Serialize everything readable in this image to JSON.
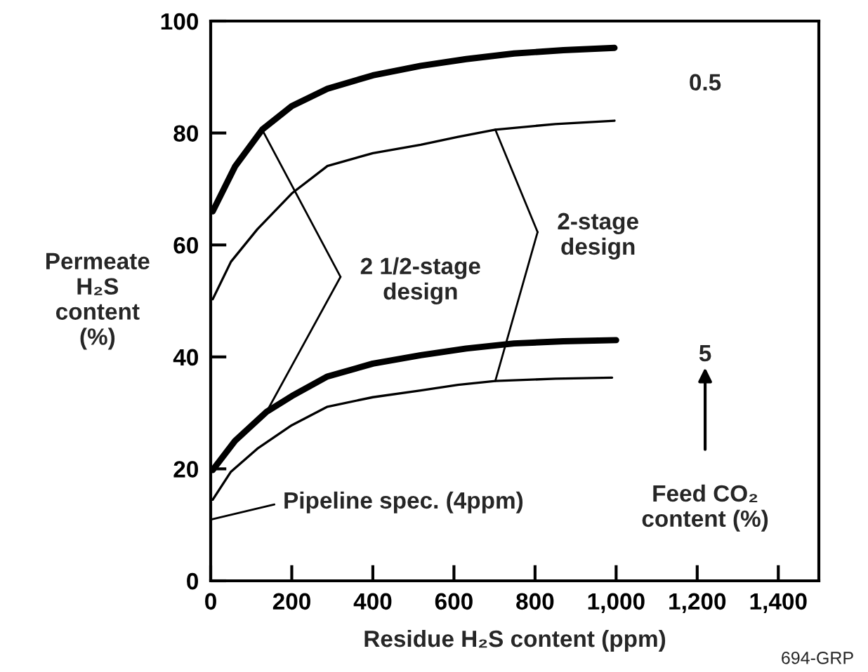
{
  "chart_data": {
    "type": "line",
    "xlabel": "Residue H₂S content (ppm)",
    "ylabel": "Permeate\nH₂S\ncontent\n(%)",
    "xlim": [
      0,
      1500
    ],
    "xticks": [
      0,
      200,
      400,
      600,
      800,
      {
        "value": 1000,
        "label": "1,000"
      },
      {
        "value": 1200,
        "label": "1,200"
      },
      {
        "value": 1400,
        "label": "1,400"
      }
    ],
    "ylim": [
      0,
      100
    ],
    "yticks": [
      0,
      20,
      40,
      60,
      80,
      100
    ],
    "grid": false,
    "legend": false,
    "marker": "none",
    "line_style": "solid",
    "series": [
      {
        "color": "#000000",
        "x": [
          5,
          60,
          127,
          200,
          288,
          400,
          518,
          630,
          748,
          870,
          996
        ],
        "values": [
          66,
          74,
          80.6,
          84.8,
          87.9,
          90.3,
          92,
          93.2,
          94.2,
          94.8,
          95.2
        ]
      },
      {
        "color": "#000000",
        "x": [
          5,
          50,
          115,
          200,
          288,
          400,
          518,
          610,
          702,
          850,
          996
        ],
        "values": [
          50.3,
          57,
          62.8,
          69.2,
          74.1,
          76.4,
          77.9,
          79.3,
          80.6,
          81.6,
          82.2
        ]
      },
      {
        "color": "#000000",
        "x": [
          5,
          60,
          138,
          200,
          288,
          400,
          518,
          630,
          748,
          870,
          1000
        ],
        "values": [
          19.8,
          25,
          30.2,
          33,
          36.5,
          38.8,
          40.3,
          41.5,
          42.4,
          42.8,
          43
        ]
      },
      {
        "color": "#000000",
        "x": [
          5,
          50,
          115,
          200,
          288,
          400,
          518,
          610,
          702,
          850,
          990
        ],
        "values": [
          14.5,
          19.5,
          23.6,
          27.8,
          31.1,
          32.8,
          34,
          35,
          35.7,
          36.1,
          36.3
        ]
      }
    ],
    "annotations": [
      "Pipeline spec. (4ppm)",
      {
        "text": "2 1/2-stage\ndesign",
        "x": 127,
        "y": 80.6
      },
      {
        "text": "2-stage\ndesign",
        "x": 702,
        "y": 80.6
      },
      "0.5",
      "5",
      "Feed CO₂\ncontent (%)",
      "694-GRP"
    ]
  }
}
